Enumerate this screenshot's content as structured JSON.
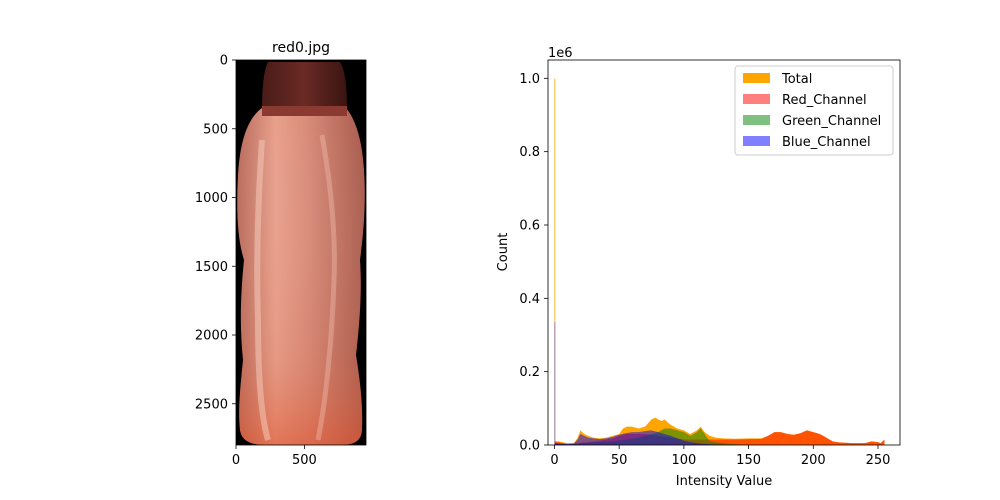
{
  "chart_data": [
    {
      "type": "image",
      "title": "red0.jpg",
      "xticks": [
        0,
        500
      ],
      "yticks": [
        0,
        500,
        1000,
        1500,
        2000,
        2500
      ],
      "xlim": [
        0,
        950
      ],
      "ylim": [
        2800,
        0
      ]
    },
    {
      "type": "area",
      "title": "",
      "xlabel": "Intensity Value",
      "ylabel": "Count",
      "y_offset_label": "1e6",
      "xlim": [
        -5,
        267
      ],
      "ylim": [
        0,
        1.05
      ],
      "xticks": [
        0,
        50,
        100,
        150,
        200,
        250
      ],
      "yticks": [
        0.0,
        0.2,
        0.4,
        0.6,
        0.8,
        1.0
      ],
      "ytick_labels": [
        "0.0",
        "0.2",
        "0.4",
        "0.6",
        "0.8",
        "1.0"
      ],
      "legend_position": "top-right",
      "series": [
        {
          "name": "Total",
          "color": "#ffa500",
          "alpha": 1.0,
          "points": [
            [
              0,
              0
            ],
            [
              0,
              1.0
            ],
            [
              0.6,
              1.0
            ],
            [
              0.6,
              0.01
            ],
            [
              3,
              0.01
            ],
            [
              10,
              0.005
            ],
            [
              15,
              0.005
            ],
            [
              18,
              0.02
            ],
            [
              20,
              0.04
            ],
            [
              23,
              0.03
            ],
            [
              26,
              0.025
            ],
            [
              30,
              0.02
            ],
            [
              35,
              0.018
            ],
            [
              40,
              0.02
            ],
            [
              45,
              0.025
            ],
            [
              50,
              0.03
            ],
            [
              53,
              0.045
            ],
            [
              56,
              0.05
            ],
            [
              60,
              0.05
            ],
            [
              65,
              0.045
            ],
            [
              70,
              0.05
            ],
            [
              75,
              0.07
            ],
            [
              78,
              0.075
            ],
            [
              80,
              0.07
            ],
            [
              83,
              0.065
            ],
            [
              85,
              0.07
            ],
            [
              88,
              0.06
            ],
            [
              90,
              0.055
            ],
            [
              95,
              0.045
            ],
            [
              100,
              0.04
            ],
            [
              105,
              0.03
            ],
            [
              110,
              0.04
            ],
            [
              113,
              0.05
            ],
            [
              116,
              0.035
            ],
            [
              120,
              0.025
            ],
            [
              125,
              0.02
            ],
            [
              130,
              0.018
            ],
            [
              140,
              0.017
            ],
            [
              150,
              0.018
            ],
            [
              160,
              0.018
            ],
            [
              165,
              0.025
            ],
            [
              170,
              0.035
            ],
            [
              175,
              0.035
            ],
            [
              180,
              0.03
            ],
            [
              185,
              0.028
            ],
            [
              190,
              0.032
            ],
            [
              195,
              0.04
            ],
            [
              200,
              0.035
            ],
            [
              205,
              0.03
            ],
            [
              210,
              0.02
            ],
            [
              215,
              0.01
            ],
            [
              220,
              0.007
            ],
            [
              230,
              0.005
            ],
            [
              240,
              0.005
            ],
            [
              245,
              0.01
            ],
            [
              250,
              0.008
            ],
            [
              252,
              0.005
            ],
            [
              255,
              0.015
            ],
            [
              255,
              0
            ]
          ]
        },
        {
          "name": "Red_Channel",
          "color": "#ff0000",
          "alpha": 0.5,
          "points": [
            [
              0,
              0
            ],
            [
              0,
              0.01
            ],
            [
              10,
              0.002
            ],
            [
              18,
              0.005
            ],
            [
              25,
              0.008
            ],
            [
              35,
              0.012
            ],
            [
              45,
              0.018
            ],
            [
              50,
              0.025
            ],
            [
              55,
              0.03
            ],
            [
              60,
              0.03
            ],
            [
              70,
              0.03
            ],
            [
              80,
              0.025
            ],
            [
              90,
              0.02
            ],
            [
              100,
              0.015
            ],
            [
              110,
              0.015
            ],
            [
              120,
              0.015
            ],
            [
              130,
              0.015
            ],
            [
              140,
              0.015
            ],
            [
              150,
              0.016
            ],
            [
              160,
              0.017
            ],
            [
              165,
              0.025
            ],
            [
              170,
              0.035
            ],
            [
              175,
              0.035
            ],
            [
              180,
              0.03
            ],
            [
              185,
              0.028
            ],
            [
              190,
              0.032
            ],
            [
              195,
              0.04
            ],
            [
              200,
              0.035
            ],
            [
              205,
              0.03
            ],
            [
              210,
              0.02
            ],
            [
              215,
              0.01
            ],
            [
              220,
              0.007
            ],
            [
              230,
              0.005
            ],
            [
              240,
              0.005
            ],
            [
              245,
              0.01
            ],
            [
              250,
              0.008
            ],
            [
              252,
              0.005
            ],
            [
              255,
              0.015
            ],
            [
              255,
              0
            ]
          ]
        },
        {
          "name": "Green_Channel",
          "color": "#008000",
          "alpha": 0.5,
          "points": [
            [
              0,
              0
            ],
            [
              0,
              0.005
            ],
            [
              10,
              0.002
            ],
            [
              18,
              0.004
            ],
            [
              25,
              0.006
            ],
            [
              35,
              0.008
            ],
            [
              45,
              0.01
            ],
            [
              55,
              0.015
            ],
            [
              65,
              0.02
            ],
            [
              70,
              0.025
            ],
            [
              75,
              0.03
            ],
            [
              80,
              0.035
            ],
            [
              85,
              0.045
            ],
            [
              90,
              0.045
            ],
            [
              95,
              0.04
            ],
            [
              100,
              0.035
            ],
            [
              105,
              0.025
            ],
            [
              110,
              0.035
            ],
            [
              113,
              0.045
            ],
            [
              116,
              0.03
            ],
            [
              120,
              0.01
            ],
            [
              130,
              0.005
            ],
            [
              140,
              0.002
            ],
            [
              150,
              0.001
            ],
            [
              200,
              0
            ],
            [
              255,
              0
            ]
          ]
        },
        {
          "name": "Blue_Channel",
          "color": "#0000ff",
          "alpha": 0.5,
          "points": [
            [
              0,
              0
            ],
            [
              0,
              0.335
            ],
            [
              0.6,
              0.335
            ],
            [
              0.6,
              0.005
            ],
            [
              5,
              0.004
            ],
            [
              10,
              0.003
            ],
            [
              15,
              0.004
            ],
            [
              18,
              0.015
            ],
            [
              20,
              0.03
            ],
            [
              23,
              0.025
            ],
            [
              26,
              0.02
            ],
            [
              30,
              0.018
            ],
            [
              35,
              0.016
            ],
            [
              40,
              0.018
            ],
            [
              45,
              0.022
            ],
            [
              50,
              0.028
            ],
            [
              55,
              0.032
            ],
            [
              60,
              0.035
            ],
            [
              65,
              0.035
            ],
            [
              70,
              0.038
            ],
            [
              75,
              0.04
            ],
            [
              80,
              0.035
            ],
            [
              85,
              0.03
            ],
            [
              90,
              0.025
            ],
            [
              95,
              0.018
            ],
            [
              100,
              0.012
            ],
            [
              105,
              0.008
            ],
            [
              110,
              0.005
            ],
            [
              115,
              0.003
            ],
            [
              120,
              0.002
            ],
            [
              130,
              0.001
            ],
            [
              150,
              0
            ],
            [
              255,
              0
            ]
          ]
        }
      ]
    }
  ]
}
